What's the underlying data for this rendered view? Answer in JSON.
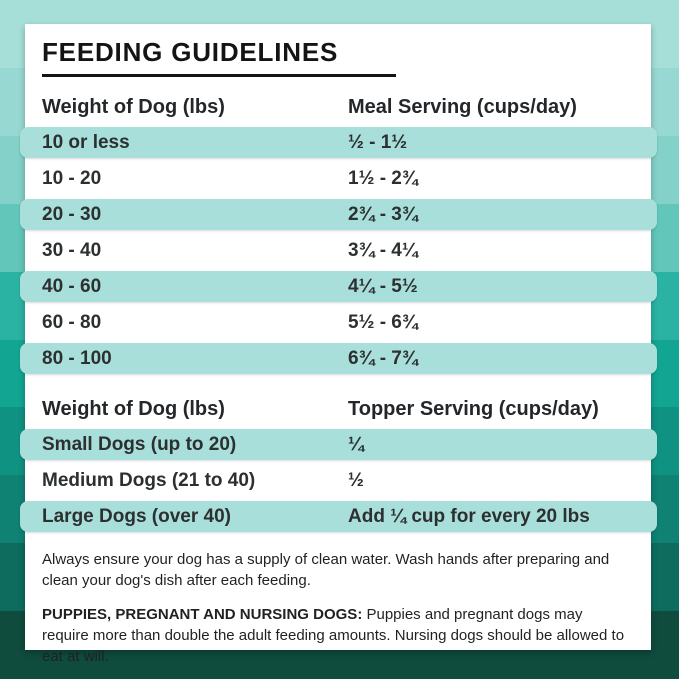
{
  "title": "FEEDING GUIDELINES",
  "meal_table": {
    "columns": [
      "Weight of Dog (lbs)",
      "Meal Serving (cups/day)"
    ],
    "rows": [
      {
        "weight": "10 or less",
        "serving": "½ - 1½"
      },
      {
        "weight": "10 - 20",
        "serving": "1½ - 2¾"
      },
      {
        "weight": "20 - 30",
        "serving": "2¾ - 3¾"
      },
      {
        "weight": "30 - 40",
        "serving": "3¾ - 4¼"
      },
      {
        "weight": "40 - 60",
        "serving": "4¼ - 5½"
      },
      {
        "weight": "60 - 80",
        "serving": "5½ - 6¾"
      },
      {
        "weight": "80 - 100",
        "serving": "6¾ - 7¾"
      }
    ]
  },
  "topper_table": {
    "columns": [
      "Weight of Dog (lbs)",
      "Topper Serving (cups/day)"
    ],
    "rows": [
      {
        "weight": "Small Dogs (up to 20)",
        "serving": "¼"
      },
      {
        "weight": "Medium Dogs (21 to 40)",
        "serving": "½"
      },
      {
        "weight": "Large Dogs (over 40)",
        "serving": "Add ¼ cup for every 20 lbs"
      }
    ]
  },
  "notes": {
    "water_note": "Always ensure your dog has a supply of clean water. Wash hands after preparing and clean your dog's dish after each feeding.",
    "puppies_label": "PUPPIES, PREGNANT AND NURSING DOGS:",
    "puppies_note": " Puppies and pregnant dogs may require more than double the adult feeding amounts. Nursing dogs should be allowed to eat at will."
  },
  "colors": {
    "card_bg": "#ffffff",
    "title_text": "#141414",
    "body_text": "#2c3031",
    "row_stripe": "#a9dfda",
    "background_bands": [
      "#a6ded8",
      "#98d8d2",
      "#83d1c8",
      "#62c7ba",
      "#2ab3a3",
      "#12a592",
      "#0f9282",
      "#0f8274",
      "#0d6c5d",
      "#0f4c3e"
    ]
  }
}
